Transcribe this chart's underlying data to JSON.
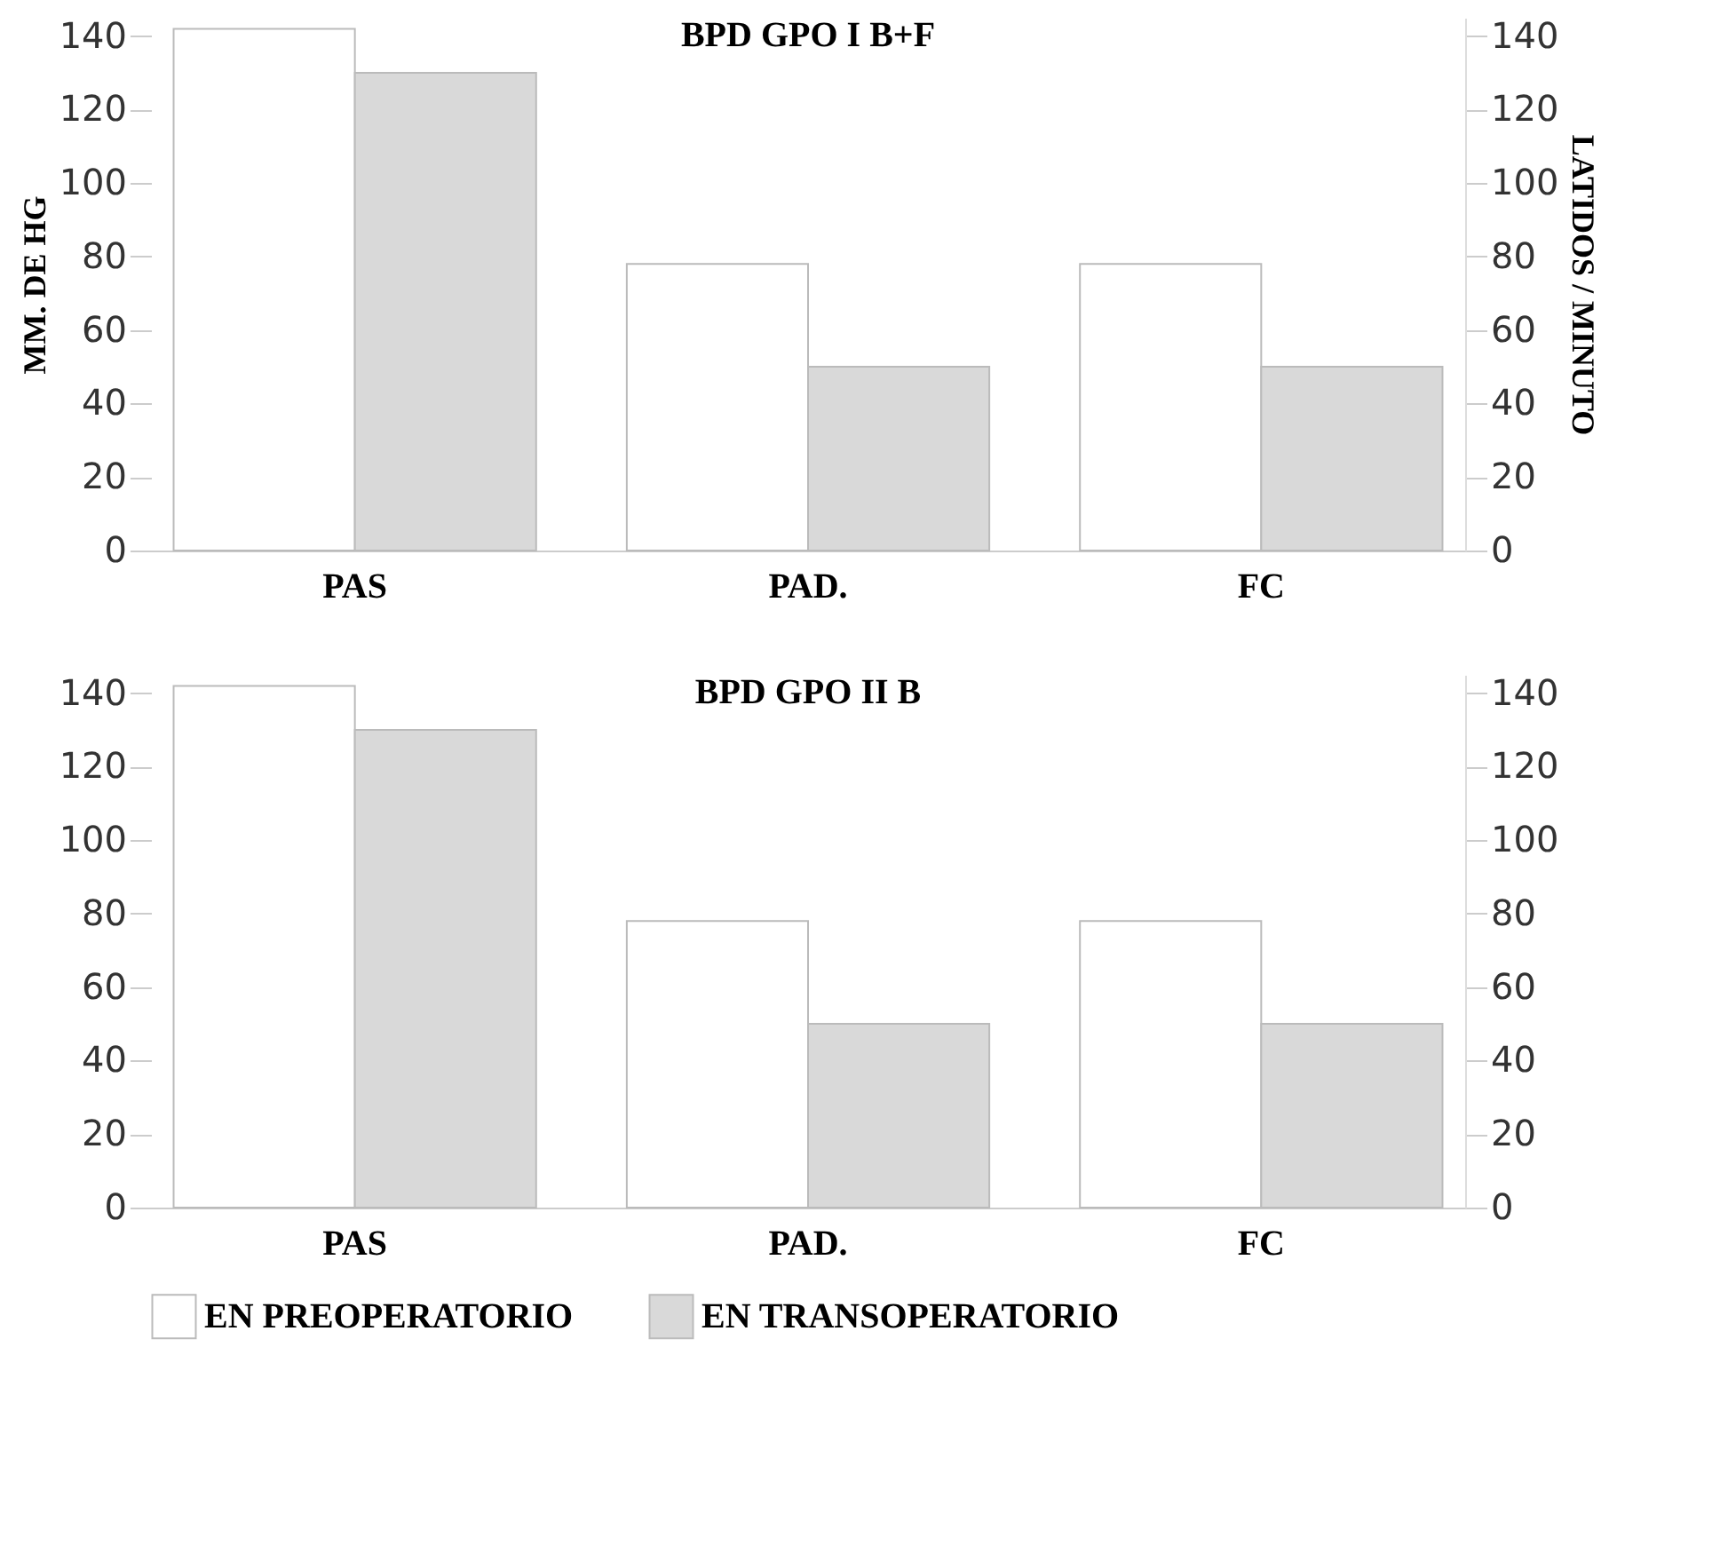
{
  "chart_data": [
    {
      "type": "bar",
      "title": "BPD GPO I  B+F",
      "ylabel": "MM. DE HG",
      "y2label": "LATIDOS / MINUTO",
      "categories": [
        "PAS",
        "PAD.",
        "FC"
      ],
      "series": [
        {
          "color": "#ffffff",
          "values": [
            142,
            78,
            78
          ]
        },
        {
          "color": "#d9d9d9",
          "values": [
            130,
            50,
            50
          ]
        }
      ],
      "ylim": [
        0,
        145
      ],
      "yticks": [
        0,
        20,
        40,
        60,
        80,
        100,
        120,
        140
      ],
      "y2lim": [
        0,
        145
      ],
      "y2ticks": [
        0,
        20,
        40,
        60,
        80,
        100,
        120,
        140
      ],
      "grid": false,
      "legend": false
    },
    {
      "type": "bar",
      "title": "BPD GPO II  B",
      "categories": [
        "PAS",
        "PAD.",
        "FC"
      ],
      "series": [
        {
          "name": "EN PREOPERATORIO",
          "color": "#ffffff",
          "values": [
            142,
            78,
            78
          ]
        },
        {
          "name": "EN TRANSOPERATORIO",
          "color": "#d9d9d9",
          "values": [
            130,
            50,
            50
          ]
        }
      ],
      "ylim": [
        0,
        145
      ],
      "yticks": [
        0,
        20,
        40,
        60,
        80,
        100,
        120,
        140
      ],
      "y2lim": [
        0,
        145
      ],
      "y2ticks": [
        0,
        20,
        40,
        60,
        80,
        100,
        120,
        140
      ],
      "grid": false,
      "legend": "bottom"
    }
  ]
}
